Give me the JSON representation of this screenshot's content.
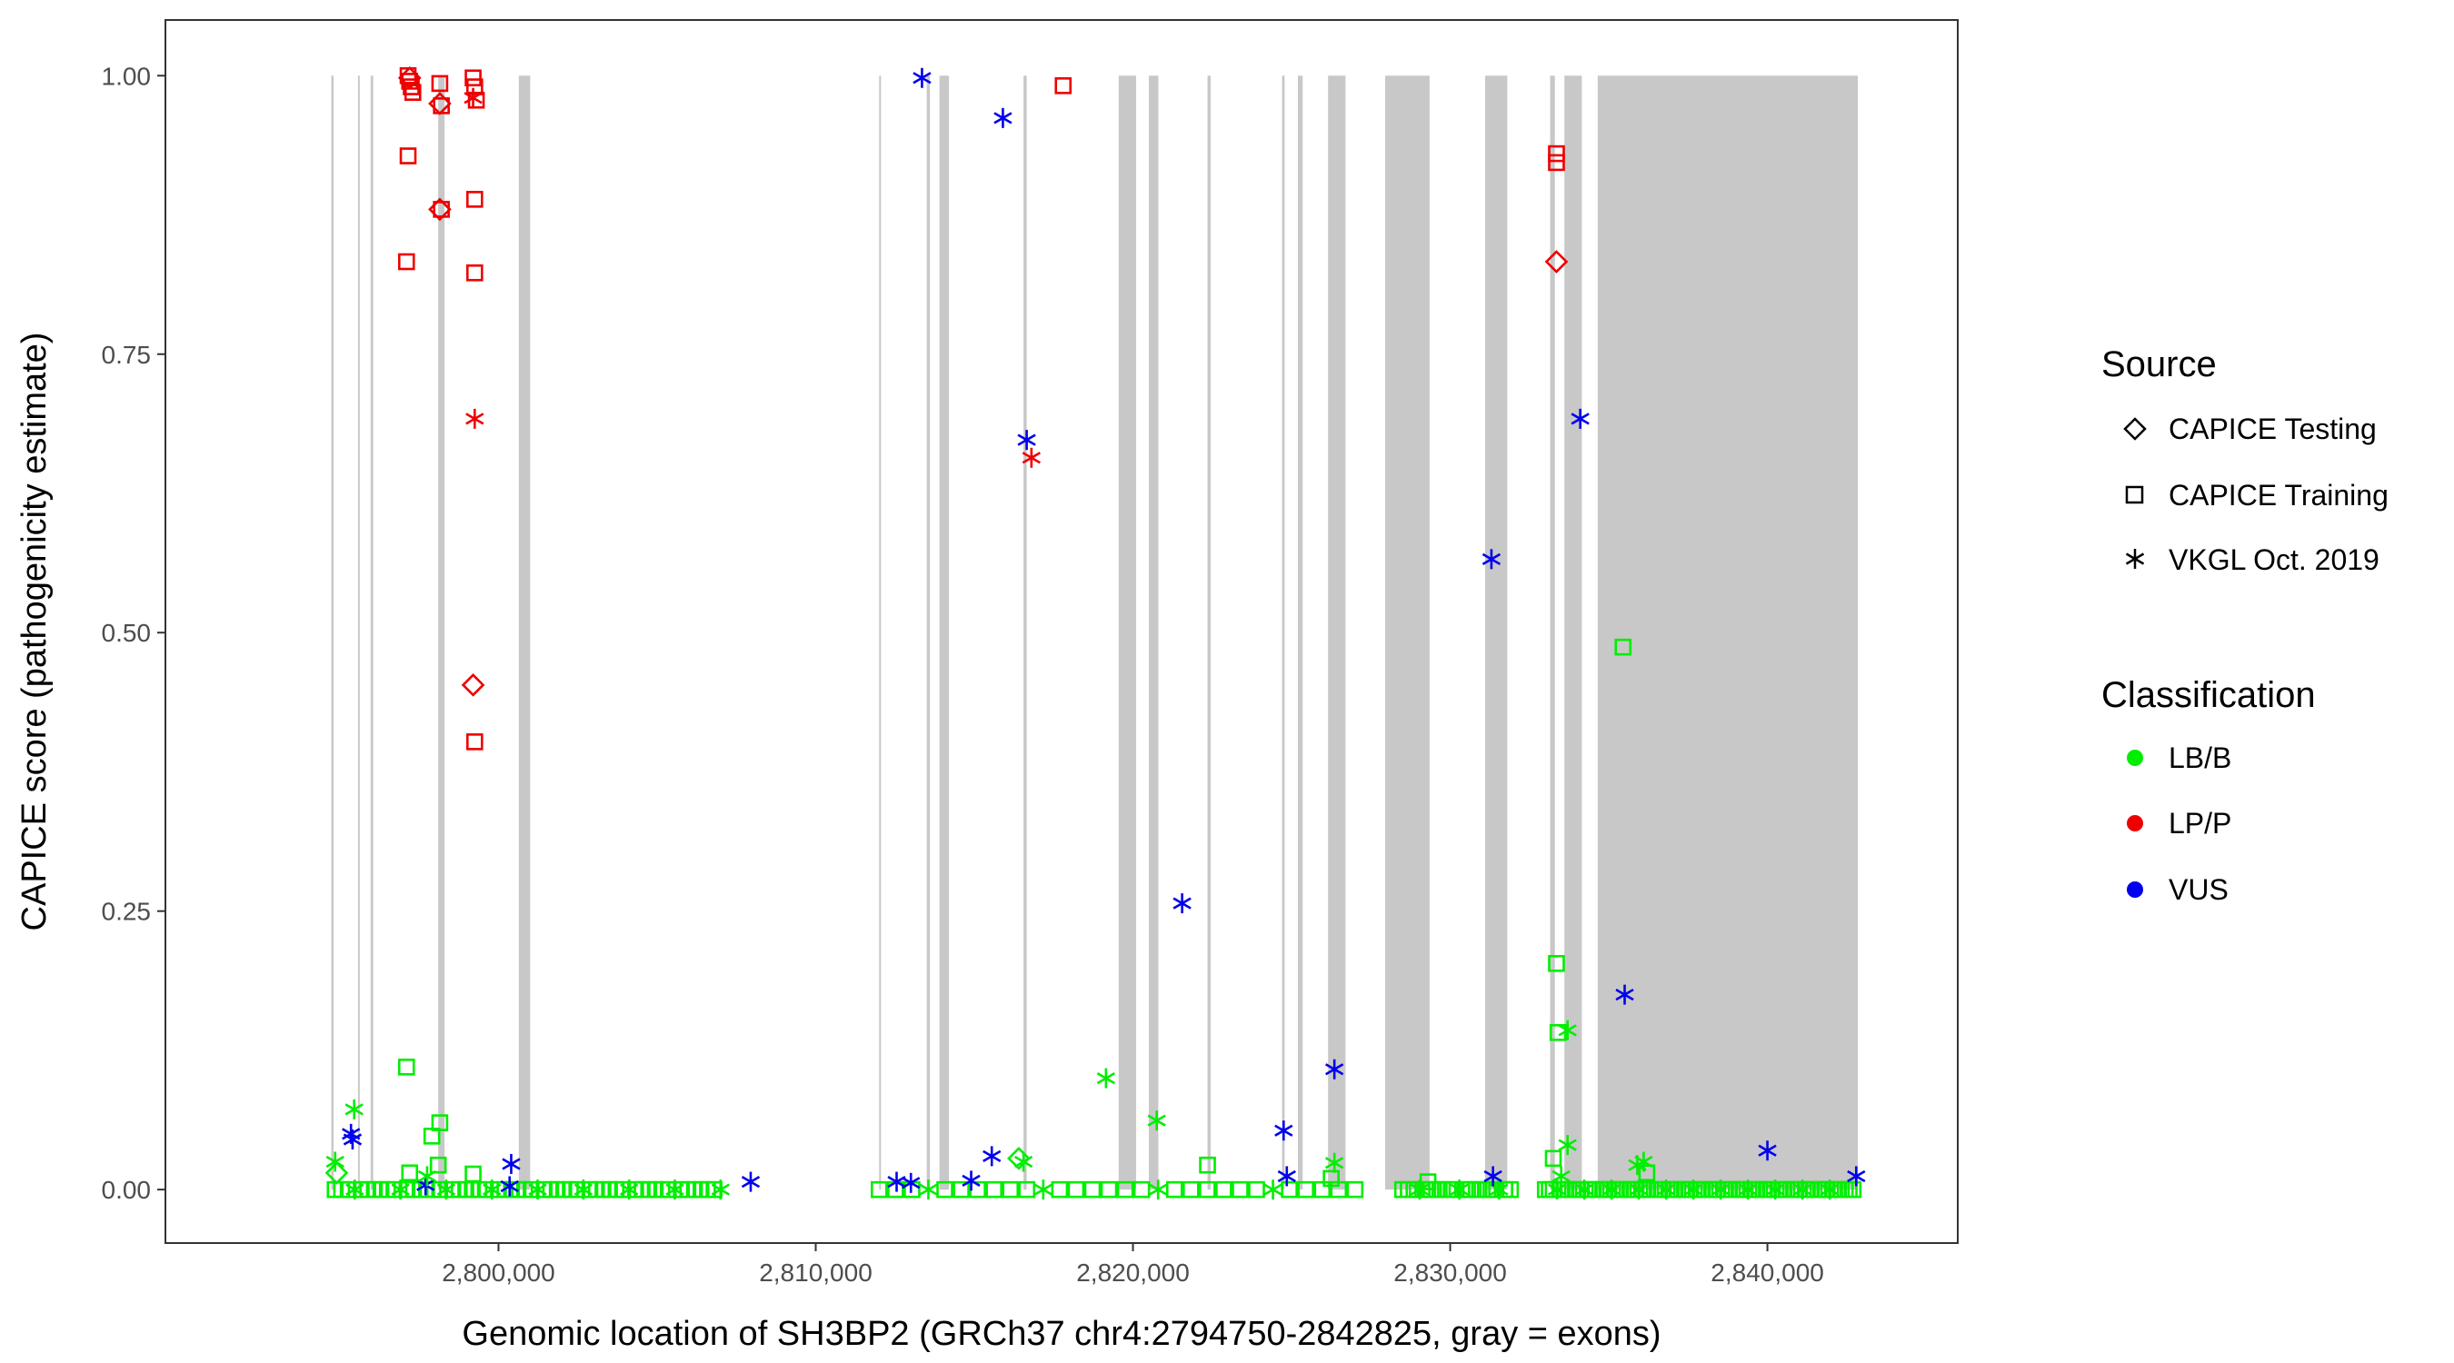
{
  "chart_data": {
    "type": "scatter",
    "title": "",
    "xlabel": "Genomic location of SH3BP2 (GRCh37 chr4:2794750-2842825, gray = exons)",
    "ylabel": "CAPICE score (pathogenicity estimate)",
    "xlim": [
      2789500,
      2846000
    ],
    "ylim": [
      -0.048,
      1.05
    ],
    "x_ticks": [
      2800000,
      2810000,
      2820000,
      2830000,
      2840000
    ],
    "x_tick_labels": [
      "2,800,000",
      "2,810,000",
      "2,820,000",
      "2,830,000",
      "2,840,000"
    ],
    "y_ticks": [
      0,
      0.25,
      0.5,
      0.75,
      1.0
    ],
    "y_tick_labels": [
      "0.00",
      "0.25",
      "0.50",
      "0.75",
      "1.00"
    ],
    "grid": false,
    "legend_position": "right",
    "exons": [
      [
        2794730,
        2794800
      ],
      [
        2795570,
        2795620
      ],
      [
        2795970,
        2796050
      ],
      [
        2798100,
        2798300
      ],
      [
        2800640,
        2801000
      ],
      [
        2812000,
        2812050
      ],
      [
        2813500,
        2813600
      ],
      [
        2813900,
        2814200
      ],
      [
        2816550,
        2816650
      ],
      [
        2819550,
        2820100
      ],
      [
        2820500,
        2820800
      ],
      [
        2822350,
        2822450
      ],
      [
        2824700,
        2824780
      ],
      [
        2825200,
        2825350
      ],
      [
        2826150,
        2826700
      ],
      [
        2827950,
        2829350
      ],
      [
        2831100,
        2831800
      ],
      [
        2833150,
        2833300
      ],
      [
        2833600,
        2834150
      ],
      [
        2834650,
        2842850
      ]
    ],
    "legend": {
      "source_title": "Source",
      "source_items": [
        {
          "label": "CAPICE Testing",
          "shape": "diamond"
        },
        {
          "label": "CAPICE Training",
          "shape": "square"
        },
        {
          "label": "VKGL Oct. 2019",
          "shape": "asterisk"
        }
      ],
      "class_title": "Classification",
      "class_items": [
        {
          "label": "LB/B",
          "color": "#00ee00"
        },
        {
          "label": "LP/P",
          "color": "#ee0000"
        },
        {
          "label": "VUS",
          "color": "#0000ee"
        }
      ]
    },
    "series": [
      {
        "name": "LP/P",
        "color": "#ee0000",
        "points": [
          {
            "x": 2797150,
            "y": 1.0,
            "shape": "square"
          },
          {
            "x": 2797200,
            "y": 0.995,
            "shape": "square"
          },
          {
            "x": 2797250,
            "y": 0.99,
            "shape": "square"
          },
          {
            "x": 2797300,
            "y": 0.985,
            "shape": "square"
          },
          {
            "x": 2797200,
            "y": 0.998,
            "shape": "diamond"
          },
          {
            "x": 2797150,
            "y": 0.928,
            "shape": "square"
          },
          {
            "x": 2797100,
            "y": 0.833,
            "shape": "square"
          },
          {
            "x": 2798150,
            "y": 0.993,
            "shape": "square"
          },
          {
            "x": 2798150,
            "y": 0.975,
            "shape": "diamond"
          },
          {
            "x": 2798200,
            "y": 0.973,
            "shape": "square"
          },
          {
            "x": 2798150,
            "y": 0.88,
            "shape": "diamond"
          },
          {
            "x": 2798200,
            "y": 0.88,
            "shape": "square"
          },
          {
            "x": 2799200,
            "y": 0.998,
            "shape": "square"
          },
          {
            "x": 2799250,
            "y": 0.99,
            "shape": "square"
          },
          {
            "x": 2799200,
            "y": 0.98,
            "shape": "asterisk"
          },
          {
            "x": 2799300,
            "y": 0.978,
            "shape": "square"
          },
          {
            "x": 2799250,
            "y": 0.889,
            "shape": "square"
          },
          {
            "x": 2799250,
            "y": 0.823,
            "shape": "square"
          },
          {
            "x": 2799250,
            "y": 0.692,
            "shape": "asterisk"
          },
          {
            "x": 2799200,
            "y": 0.453,
            "shape": "diamond"
          },
          {
            "x": 2799250,
            "y": 0.402,
            "shape": "square"
          },
          {
            "x": 2817800,
            "y": 0.991,
            "shape": "square"
          },
          {
            "x": 2816800,
            "y": 0.657,
            "shape": "asterisk"
          },
          {
            "x": 2833350,
            "y": 0.93,
            "shape": "square"
          },
          {
            "x": 2833350,
            "y": 0.922,
            "shape": "square"
          },
          {
            "x": 2833350,
            "y": 0.833,
            "shape": "diamond"
          }
        ]
      },
      {
        "name": "VUS",
        "color": "#0000ee",
        "points": [
          {
            "x": 2813350,
            "y": 0.998,
            "shape": "asterisk"
          },
          {
            "x": 2815900,
            "y": 0.962,
            "shape": "asterisk"
          },
          {
            "x": 2816650,
            "y": 0.673,
            "shape": "asterisk"
          },
          {
            "x": 2821550,
            "y": 0.257,
            "shape": "asterisk"
          },
          {
            "x": 2831300,
            "y": 0.566,
            "shape": "asterisk"
          },
          {
            "x": 2834100,
            "y": 0.692,
            "shape": "asterisk"
          },
          {
            "x": 2835500,
            "y": 0.175,
            "shape": "asterisk"
          },
          {
            "x": 2826350,
            "y": 0.108,
            "shape": "asterisk"
          },
          {
            "x": 2824750,
            "y": 0.053,
            "shape": "asterisk"
          },
          {
            "x": 2824850,
            "y": 0.012,
            "shape": "asterisk"
          },
          {
            "x": 2840000,
            "y": 0.035,
            "shape": "asterisk"
          },
          {
            "x": 2842800,
            "y": 0.012,
            "shape": "asterisk"
          },
          {
            "x": 2795350,
            "y": 0.05,
            "shape": "asterisk"
          },
          {
            "x": 2795400,
            "y": 0.045,
            "shape": "asterisk"
          },
          {
            "x": 2800400,
            "y": 0.023,
            "shape": "asterisk"
          },
          {
            "x": 2800350,
            "y": 0.003,
            "shape": "asterisk"
          },
          {
            "x": 2807950,
            "y": 0.007,
            "shape": "asterisk"
          },
          {
            "x": 2812550,
            "y": 0.007,
            "shape": "asterisk"
          },
          {
            "x": 2813000,
            "y": 0.006,
            "shape": "asterisk"
          },
          {
            "x": 2814900,
            "y": 0.008,
            "shape": "asterisk"
          },
          {
            "x": 2815550,
            "y": 0.03,
            "shape": "asterisk"
          },
          {
            "x": 2797700,
            "y": 0.004,
            "shape": "asterisk"
          },
          {
            "x": 2831350,
            "y": 0.012,
            "shape": "asterisk"
          }
        ]
      },
      {
        "name": "LB/B",
        "color": "#00ee00",
        "points": [
          {
            "x": 2835450,
            "y": 0.487,
            "shape": "square"
          },
          {
            "x": 2833350,
            "y": 0.203,
            "shape": "square"
          },
          {
            "x": 2833400,
            "y": 0.141,
            "shape": "square"
          },
          {
            "x": 2833700,
            "y": 0.143,
            "shape": "asterisk"
          },
          {
            "x": 2797100,
            "y": 0.11,
            "shape": "square"
          },
          {
            "x": 2819150,
            "y": 0.1,
            "shape": "asterisk"
          },
          {
            "x": 2820750,
            "y": 0.062,
            "shape": "asterisk"
          },
          {
            "x": 2795450,
            "y": 0.072,
            "shape": "asterisk"
          },
          {
            "x": 2798150,
            "y": 0.06,
            "shape": "square"
          },
          {
            "x": 2797900,
            "y": 0.048,
            "shape": "square"
          },
          {
            "x": 2794850,
            "y": 0.025,
            "shape": "asterisk"
          },
          {
            "x": 2794900,
            "y": 0.015,
            "shape": "diamond"
          },
          {
            "x": 2797200,
            "y": 0.015,
            "shape": "square"
          },
          {
            "x": 2797750,
            "y": 0.012,
            "shape": "asterisk"
          },
          {
            "x": 2798100,
            "y": 0.022,
            "shape": "square"
          },
          {
            "x": 2799200,
            "y": 0.014,
            "shape": "square"
          },
          {
            "x": 2816400,
            "y": 0.028,
            "shape": "diamond"
          },
          {
            "x": 2816550,
            "y": 0.025,
            "shape": "asterisk"
          },
          {
            "x": 2822350,
            "y": 0.022,
            "shape": "square"
          },
          {
            "x": 2826350,
            "y": 0.024,
            "shape": "asterisk"
          },
          {
            "x": 2826250,
            "y": 0.01,
            "shape": "square"
          },
          {
            "x": 2829300,
            "y": 0.007,
            "shape": "square"
          },
          {
            "x": 2833250,
            "y": 0.028,
            "shape": "square"
          },
          {
            "x": 2833700,
            "y": 0.04,
            "shape": "asterisk"
          },
          {
            "x": 2833500,
            "y": 0.012,
            "shape": "asterisk"
          },
          {
            "x": 2836100,
            "y": 0.025,
            "shape": "asterisk"
          },
          {
            "x": 2835900,
            "y": 0.022,
            "shape": "asterisk"
          },
          {
            "x": 2836200,
            "y": 0.015,
            "shape": "square"
          }
        ]
      }
    ],
    "baseline_clusters": [
      {
        "x_start": 2794850,
        "x_end": 2807000,
        "count": 60
      },
      {
        "x_start": 2812000,
        "x_end": 2827000,
        "count": 30
      },
      {
        "x_start": 2828500,
        "x_end": 2831900,
        "count": 20
      },
      {
        "x_start": 2833000,
        "x_end": 2842700,
        "count": 80
      }
    ]
  }
}
